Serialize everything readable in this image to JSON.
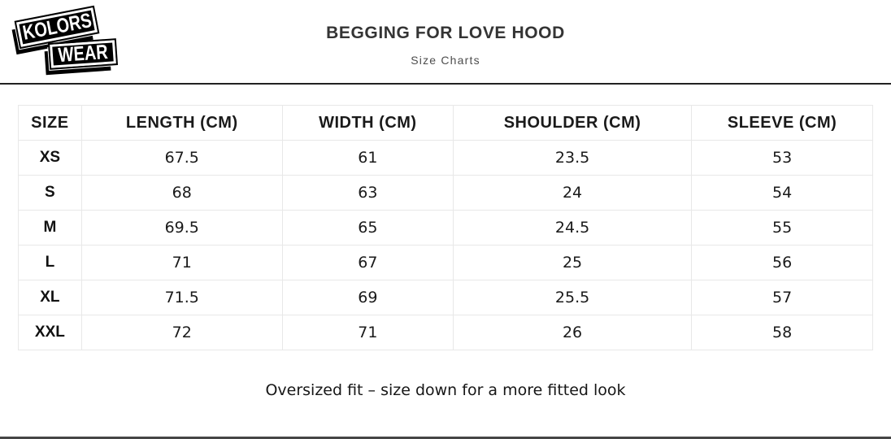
{
  "brand": {
    "name": "KOLORS WEAR",
    "logo_line1": "KOLORS",
    "logo_line2": "WEAR"
  },
  "header": {
    "title": "BEGGING FOR LOVE HOOD",
    "subtitle": "Size Charts"
  },
  "chart_data": {
    "type": "table",
    "title": "BEGGING FOR LOVE HOOD",
    "subtitle": "Size Charts",
    "columns": [
      "SIZE",
      "LENGTH (CM)",
      "WIDTH (CM)",
      "SHOULDER (CM)",
      "SLEEVE (CM)"
    ],
    "rows": [
      [
        "XS",
        "67.5",
        "61",
        "23.5",
        "53"
      ],
      [
        "S",
        "68",
        "63",
        "24",
        "54"
      ],
      [
        "M",
        "69.5",
        "65",
        "24.5",
        "55"
      ],
      [
        "L",
        "71",
        "67",
        "25",
        "56"
      ],
      [
        "XL",
        "71.5",
        "69",
        "25.5",
        "57"
      ],
      [
        "XXL",
        "72",
        "71",
        "26",
        "58"
      ]
    ],
    "note": "Oversized fit – size down for a more fitted look"
  },
  "footer": {
    "note": "Oversized fit – size down for a more fitted look"
  },
  "colors": {
    "divider": "#222222",
    "bottom_line": "#454545",
    "table_border": "#e8e8e8",
    "title_text": "#343434",
    "subtitle_text": "#4d4d4d",
    "body_text": "#1a1a1a",
    "logo_bg": "#000000",
    "logo_text": "#ffffff"
  }
}
